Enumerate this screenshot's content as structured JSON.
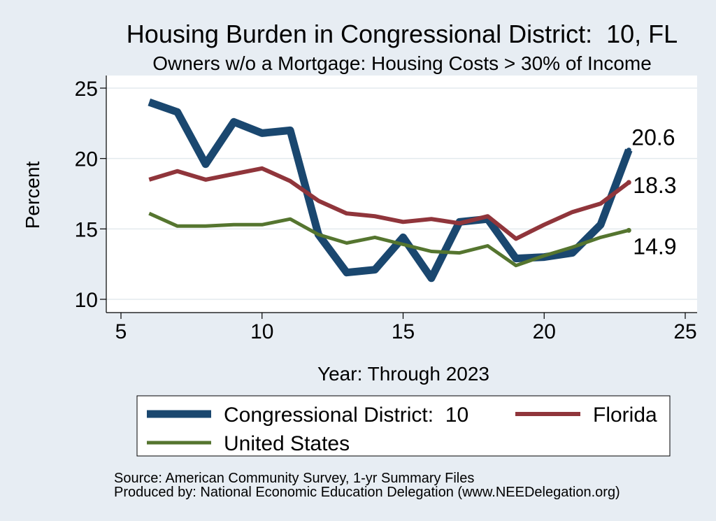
{
  "chart_data": {
    "type": "line",
    "title": "Housing Burden in Congressional District:  10, FL",
    "subtitle": "Owners w/o a Mortgage: Housing Costs > 30% of Income",
    "xlabel": "Year: Through 2023",
    "ylabel": "Percent",
    "xlim": [
      5,
      25
    ],
    "ylim": [
      10,
      25
    ],
    "xticks": [
      5,
      10,
      15,
      20,
      25
    ],
    "yticks": [
      10,
      15,
      20,
      25
    ],
    "grid": true,
    "legend_position": "bottom",
    "x": [
      6,
      7,
      8,
      9,
      10,
      11,
      12,
      13,
      14,
      15,
      16,
      17,
      18,
      19,
      20,
      21,
      22,
      23
    ],
    "series": [
      {
        "name": "Congressional District:  10",
        "color": "#1a476f",
        "values": [
          24.0,
          23.3,
          19.6,
          22.6,
          21.8,
          22.0,
          14.6,
          11.9,
          12.1,
          14.4,
          11.5,
          15.5,
          15.7,
          12.9,
          13.0,
          13.3,
          15.3,
          20.6
        ],
        "end_label": "20.6"
      },
      {
        "name": "Florida",
        "color": "#90353b",
        "values": [
          18.5,
          19.1,
          18.5,
          18.9,
          19.3,
          18.4,
          17.0,
          16.1,
          15.9,
          15.5,
          15.7,
          15.4,
          15.9,
          14.3,
          15.3,
          16.2,
          16.8,
          18.3
        ],
        "end_label": "18.3"
      },
      {
        "name": "United States",
        "color": "#55752f",
        "values": [
          16.1,
          15.2,
          15.2,
          15.3,
          15.3,
          15.7,
          14.6,
          14.0,
          14.4,
          13.9,
          13.4,
          13.3,
          13.8,
          12.4,
          13.1,
          13.7,
          14.4,
          14.9
        ],
        "end_label": "14.9"
      }
    ]
  },
  "theme": {
    "background": "#e7edf3",
    "plot_background": "#ffffff",
    "title_color": "#1a476f",
    "grid_color": "#e3eaee"
  },
  "notes": {
    "source": "Source: American Community Survey, 1-yr Summary Files",
    "produced_by": "Produced by: National Economic Education Delegation (www.NEEDelegation.org)"
  }
}
